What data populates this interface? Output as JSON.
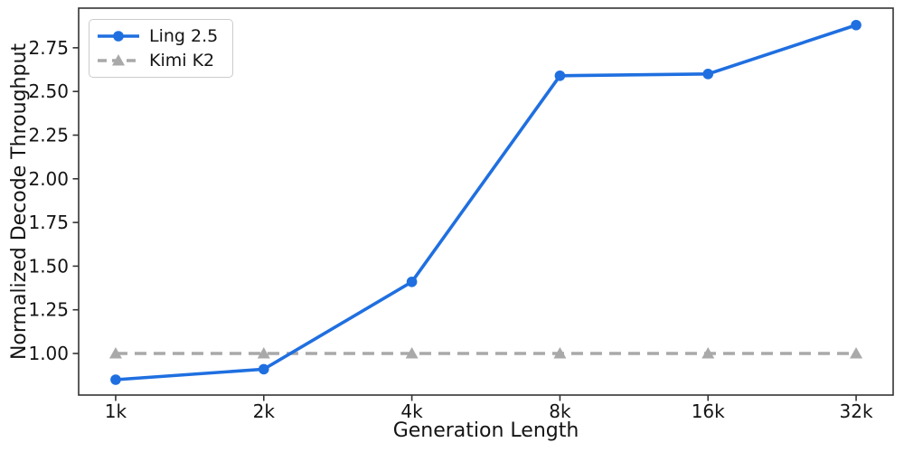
{
  "chart_data": {
    "type": "line",
    "title": "",
    "xlabel": "Generation Length",
    "ylabel": "Normalized Decode Throughput",
    "categories": [
      "1k",
      "2k",
      "4k",
      "8k",
      "16k",
      "32k"
    ],
    "series": [
      {
        "name": "Ling 2.5",
        "values": [
          0.85,
          0.91,
          1.41,
          2.59,
          2.6,
          2.88
        ],
        "color": "#1f6fe0",
        "line_style": "solid",
        "marker": "circle"
      },
      {
        "name": "Kimi K2",
        "values": [
          1.0,
          1.0,
          1.0,
          1.0,
          1.0,
          1.0
        ],
        "color": "#a9a9a9",
        "line_style": "dashed",
        "marker": "triangle-up"
      }
    ],
    "ytick_labels": [
      "1.00",
      "1.25",
      "1.50",
      "1.75",
      "2.00",
      "2.25",
      "2.50",
      "2.75"
    ],
    "ylim": [
      0.762,
      2.977
    ],
    "grid": false,
    "legend_position": "upper left",
    "spine_color": "#333333",
    "text_color": "#141414"
  }
}
